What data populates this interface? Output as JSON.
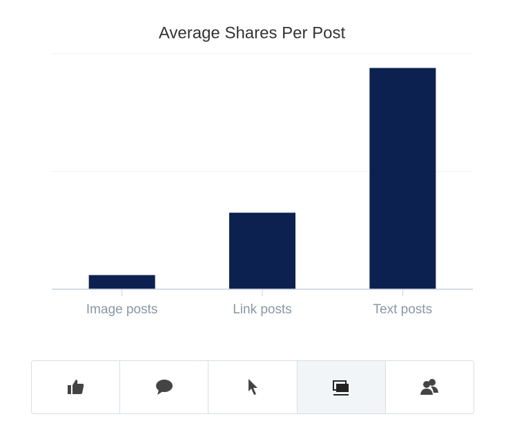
{
  "chart_data": {
    "type": "bar",
    "title": "Average Shares Per Post",
    "categories": [
      "Image posts",
      "Link posts",
      "Text posts"
    ],
    "values": [
      0.12,
      0.65,
      1.88
    ],
    "color": "#0c2150",
    "ylim": [
      0,
      2
    ],
    "yticks": [
      0,
      1,
      2
    ],
    "grid": true
  }
}
